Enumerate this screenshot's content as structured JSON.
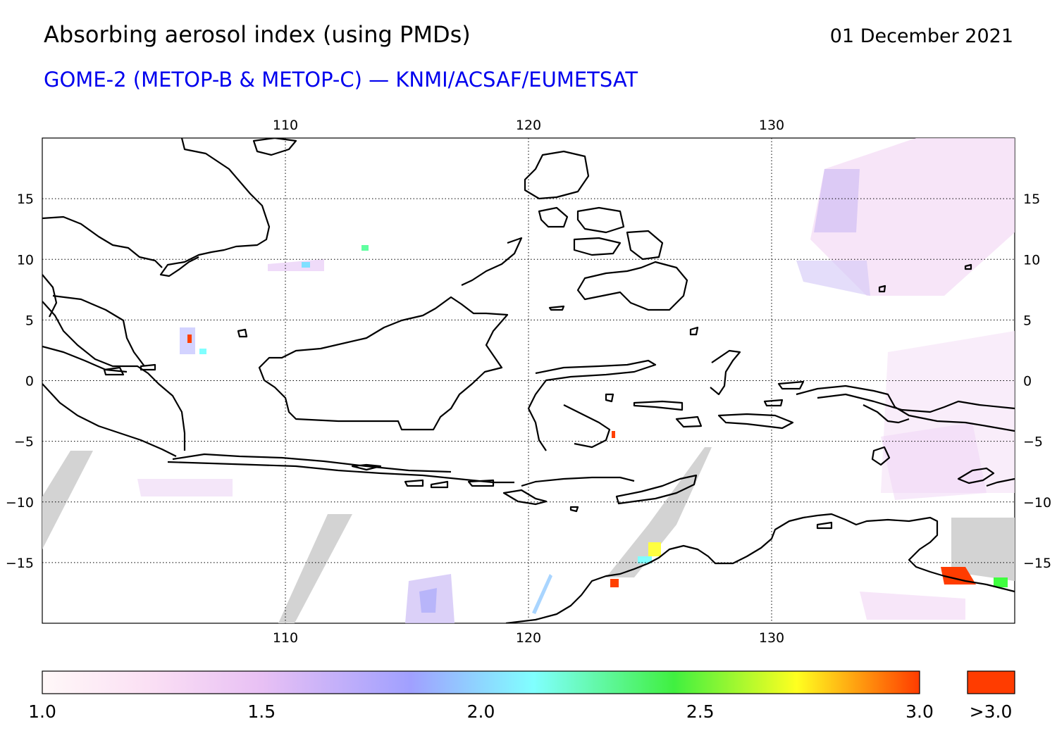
{
  "header": {
    "title": "Absorbing aerosol index (using PMDs)",
    "date": "01 December 2021",
    "subtitle": "GOME-2 (METOP-B & METOP-C) — KNMI/ACSAF/EUMETSAT"
  },
  "map": {
    "lon_range": [
      100,
      140
    ],
    "lat_range": [
      -20,
      20
    ],
    "lon_ticks": [
      110,
      120,
      130
    ],
    "lat_ticks": [
      15,
      10,
      5,
      0,
      -5,
      -10,
      -15
    ],
    "grid": "dotted",
    "no_data_color": "#d3d3d3",
    "coastline_color": "#000000"
  },
  "colorbar": {
    "range": [
      1.0,
      3.0
    ],
    "tick_labels": [
      "1.0",
      "1.5",
      "2.0",
      "2.5",
      "3.0"
    ],
    "overflow_label": ">3.0",
    "overflow_color": "#ff3c00",
    "stops": [
      "#fff8f8",
      "#f0c8f0",
      "#c8b0f0",
      "#a0a0ff",
      "#80ffff",
      "#40ff40",
      "#ffff20",
      "#ff3c00"
    ]
  }
}
